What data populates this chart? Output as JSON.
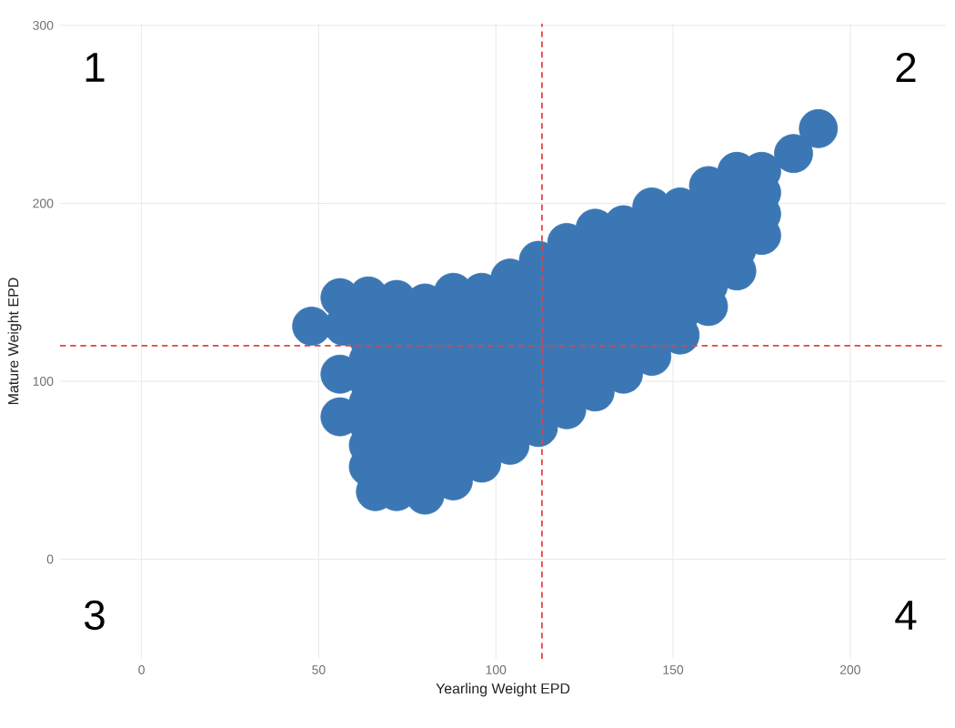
{
  "chart_data": {
    "type": "scatter",
    "xlabel": "Yearling Weight EPD",
    "ylabel": "Mature Weight EPD",
    "annotations": [
      "1",
      "2",
      "3",
      "4"
    ],
    "xlim": [
      -23,
      227
    ],
    "ylim": [
      -56,
      301
    ],
    "xticks": [
      0,
      50,
      100,
      150,
      200
    ],
    "yticks": [
      0,
      100,
      200,
      300
    ],
    "grid": true,
    "marker": "circle",
    "ref_lines": [
      {
        "axis": "x",
        "value": 113,
        "color": "#e8413c",
        "line_style": "dashed"
      },
      {
        "axis": "y",
        "value": 120,
        "color": "#e8413c",
        "line_style": "dashed"
      }
    ],
    "series": [
      {
        "color": "#3b77b4",
        "x": [
          64,
          64,
          64,
          64,
          64,
          64,
          64,
          64,
          64,
          72,
          72,
          72,
          72,
          72,
          72,
          72,
          72,
          72,
          72,
          80,
          80,
          80,
          80,
          80,
          80,
          80,
          80,
          80,
          80,
          88,
          88,
          88,
          88,
          88,
          88,
          88,
          88,
          88,
          88,
          96,
          96,
          96,
          96,
          96,
          96,
          96,
          96,
          96,
          104,
          104,
          104,
          104,
          104,
          104,
          104,
          104,
          104,
          112,
          112,
          112,
          112,
          112,
          112,
          112,
          112,
          112,
          120,
          120,
          120,
          120,
          120,
          120,
          120,
          120,
          120,
          128,
          128,
          128,
          128,
          128,
          128,
          128,
          128,
          128,
          136,
          136,
          136,
          136,
          136,
          136,
          136,
          136,
          144,
          144,
          144,
          144,
          144,
          144,
          144,
          144,
          152,
          152,
          152,
          152,
          152,
          152,
          152,
          160,
          160,
          160,
          160,
          160,
          160,
          160,
          168,
          168,
          168,
          168,
          168,
          168,
          175,
          175,
          175,
          175,
          56,
          48,
          57,
          184,
          191,
          56,
          56,
          66
        ],
        "values": [
          52,
          64,
          76,
          88,
          100,
          112,
          124,
          136,
          148,
          38,
          50,
          62,
          74,
          86,
          98,
          110,
          122,
          134,
          146,
          36,
          48,
          60,
          72,
          84,
          96,
          108,
          120,
          132,
          144,
          44,
          56,
          68,
          80,
          92,
          104,
          116,
          128,
          140,
          150,
          54,
          66,
          78,
          90,
          102,
          114,
          126,
          138,
          150,
          64,
          76,
          88,
          100,
          112,
          124,
          136,
          148,
          158,
          74,
          86,
          98,
          110,
          122,
          134,
          146,
          158,
          168,
          84,
          96,
          108,
          120,
          132,
          144,
          156,
          168,
          178,
          94,
          106,
          118,
          130,
          142,
          154,
          166,
          178,
          186,
          104,
          116,
          128,
          140,
          152,
          164,
          176,
          188,
          114,
          126,
          138,
          150,
          162,
          174,
          186,
          198,
          126,
          138,
          150,
          162,
          174,
          186,
          198,
          142,
          154,
          166,
          178,
          190,
          202,
          210,
          162,
          174,
          186,
          198,
          210,
          218,
          182,
          194,
          206,
          218,
          147,
          131,
          131,
          228,
          242,
          80,
          104,
          38
        ]
      }
    ]
  }
}
